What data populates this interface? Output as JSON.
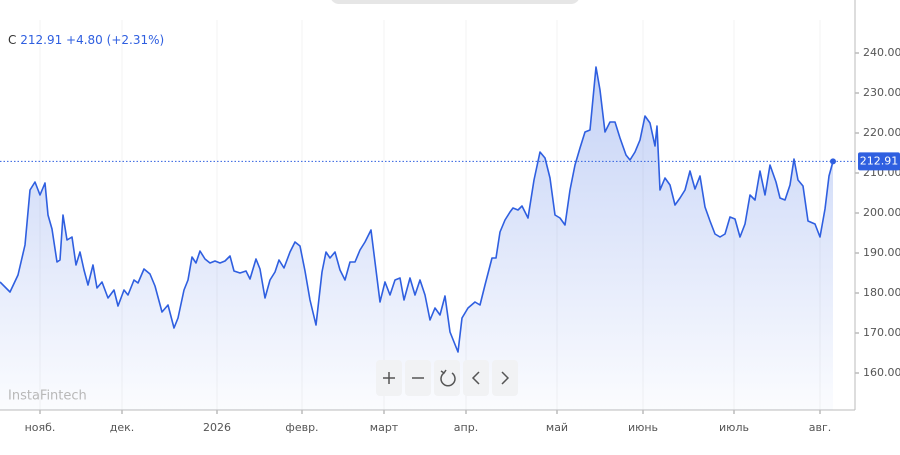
{
  "header": {
    "symbol": "C",
    "change": "+4.80 (+2.31%)",
    "watermark": "InstaFintech"
  },
  "chart_data": {
    "type": "area",
    "color": "#2f5fe0",
    "x": [
      0,
      2.5,
      4.5,
      6.25,
      7.5,
      8.75,
      10,
      11.25,
      12,
      13,
      14.25,
      15,
      15.75,
      16.75,
      18,
      19,
      20,
      21,
      22,
      23.25,
      24.25,
      25.5,
      27,
      28.5,
      29.5,
      31,
      32,
      33.5,
      34.5,
      36,
      37.5,
      38.75,
      40.5,
      42,
      43.5,
      44.5,
      46,
      47,
      48,
      49,
      50,
      51.25,
      52.5,
      53.75,
      55,
      56.25,
      57.5,
      58.5,
      60,
      61.5,
      62.5,
      64,
      65,
      66.25,
      67.5,
      68.75,
      69.75,
      71,
      72.5,
      73.75,
      75,
      76.25,
      77.5,
      79,
      80.5,
      81.5,
      82.5,
      83.75,
      85,
      86.25,
      87.5,
      88.75,
      90,
      91.25,
      92.75,
      93.75,
      95,
      96.25,
      97.5,
      98.75,
      100,
      101,
      102.5,
      103.75,
      105,
      106.25,
      107.5,
      108.75,
      110,
      111.25,
      112.5,
      114.5,
      115.5,
      117,
      118.75,
      120,
      121.25,
      123,
      124,
      125,
      126.25,
      127.5,
      128.25,
      129.5,
      130.5,
      132,
      133.5,
      135,
      136.25,
      137.5,
      138.75,
      140,
      141.25,
      142.5,
      143.75,
      145,
      146.25,
      147.5,
      149,
      150,
      151.25,
      152.5,
      153.75,
      155,
      156.5,
      157.5,
      158.75,
      160,
      161.25,
      162.5,
      163.75,
      164.25,
      165,
      166.25,
      167.5,
      168.75,
      170,
      171.25,
      172.5,
      173.75,
      175,
      176.25,
      177.5,
      178.75,
      180,
      181.25,
      182.5,
      183.75,
      185,
      186.25,
      187.5,
      188.75,
      190,
      191.25,
      192.5,
      194,
      195,
      196.25,
      197.5,
      198.5,
      199.5,
      200.75,
      202,
      203.75,
      205,
      206.25,
      207.25,
      208.25
    ],
    "values": [
      182.75,
      180.25,
      184.5,
      192,
      205.75,
      207.75,
      204.5,
      207.5,
      199.5,
      196,
      187.75,
      188.25,
      199.5,
      193.25,
      194,
      187,
      190.25,
      185.75,
      182,
      187,
      181.25,
      182.75,
      178.75,
      180.75,
      176.75,
      180.75,
      179.5,
      183.25,
      182.5,
      186,
      184.75,
      181.75,
      175.25,
      177,
      171.25,
      173.75,
      180.75,
      183.25,
      189,
      187.5,
      190.5,
      188.5,
      187.5,
      188,
      187.5,
      188,
      189.25,
      185.5,
      185,
      185.5,
      183.5,
      188.5,
      186,
      178.75,
      183.25,
      185.25,
      188.25,
      186.25,
      190.25,
      192.75,
      191.75,
      185.5,
      178.25,
      172,
      185.25,
      190.25,
      188.75,
      190.25,
      185.75,
      183.25,
      187.75,
      187.75,
      190.75,
      192.75,
      195.75,
      187.75,
      177.75,
      182.75,
      179.5,
      183.25,
      183.75,
      178.25,
      183.75,
      179.5,
      183.25,
      179.5,
      173.25,
      176.25,
      174.5,
      179.25,
      170.25,
      165.25,
      173.75,
      176.25,
      177.75,
      177,
      182,
      188.75,
      188.75,
      195.25,
      198.25,
      200.25,
      201.25,
      200.75,
      201.75,
      198.75,
      208.25,
      215.25,
      213.75,
      208.75,
      199.5,
      198.75,
      197,
      205.75,
      212,
      216.25,
      220.25,
      220.75,
      236.5,
      230.75,
      220.25,
      222.75,
      222.75,
      218.75,
      214.5,
      213.25,
      215.25,
      218.25,
      224.25,
      222.5,
      216.75,
      221.75,
      205.75,
      208.75,
      207,
      202,
      203.75,
      205.75,
      210.5,
      206,
      209.25,
      201.5,
      198,
      194.75,
      194,
      194.75,
      199,
      198.5,
      194,
      197.25,
      204.5,
      203.25,
      210.5,
      204.5,
      212,
      207.75,
      203.75,
      203.25,
      207,
      213.5,
      208.25,
      206.75,
      198,
      197.25,
      194,
      201,
      209.25,
      212.91
    ],
    "xlim": [
      0,
      213.75
    ],
    "xticks": [
      {
        "value": 10,
        "label": "нояб."
      },
      {
        "value": 30.5,
        "label": "дек."
      },
      {
        "value": 54.25,
        "label": "2026"
      },
      {
        "value": 75.5,
        "label": "февр."
      },
      {
        "value": 96,
        "label": "март"
      },
      {
        "value": 116.5,
        "label": "апр."
      },
      {
        "value": 139.25,
        "label": "май"
      },
      {
        "value": 160.75,
        "label": "июнь"
      },
      {
        "value": 183.5,
        "label": "июль"
      },
      {
        "value": 205,
        "label": "авг."
      }
    ],
    "ylim": [
      150.75,
      248.25
    ],
    "yticks": [
      {
        "value": 160,
        "label": "160.00"
      },
      {
        "value": 170,
        "label": "170.00"
      },
      {
        "value": 180,
        "label": "180.00"
      },
      {
        "value": 190,
        "label": "190.00"
      },
      {
        "value": 200,
        "label": "200.00"
      },
      {
        "value": 210,
        "label": "210.00"
      },
      {
        "value": 220,
        "label": "220.00"
      },
      {
        "value": 230,
        "label": "230.00"
      },
      {
        "value": 240,
        "label": "240.00"
      }
    ]
  }
}
